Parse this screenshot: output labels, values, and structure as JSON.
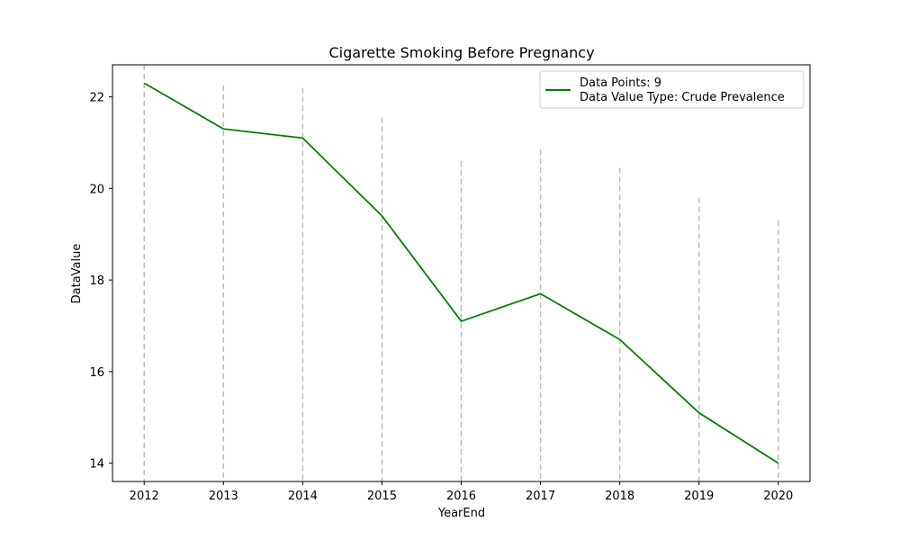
{
  "chart_data": {
    "type": "line",
    "title": "Cigarette Smoking Before Pregnancy",
    "xlabel": "YearEnd",
    "ylabel": "DataValue",
    "x": [
      2012,
      2013,
      2014,
      2015,
      2016,
      2017,
      2018,
      2019,
      2020
    ],
    "series": [
      {
        "values": [
          22.3,
          21.3,
          21.1,
          19.4,
          17.1,
          17.7,
          16.7,
          15.1,
          14.0
        ],
        "color": "#008000"
      }
    ],
    "error_bar_tops": [
      22.7,
      22.25,
      22.2,
      21.55,
      20.6,
      20.85,
      20.45,
      19.8,
      19.3
    ],
    "error_bar_color": "#bbbbbb",
    "xlim": [
      2011.6,
      2020.4
    ],
    "ylim": [
      13.6,
      22.7
    ],
    "yticks": [
      14,
      16,
      18,
      20,
      22
    ],
    "grid": false,
    "legend": {
      "position": "top-right",
      "lines": [
        "Data Points: 9",
        "Data Value Type: Crude Prevalence"
      ]
    }
  }
}
